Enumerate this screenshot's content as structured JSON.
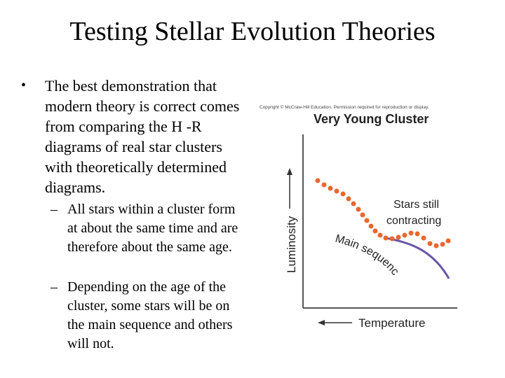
{
  "slide": {
    "title": "Testing Stellar Evolution Theories",
    "bullet": {
      "marker": "•",
      "text": "The best demonstration that modern theory is correct comes from comparing the H -R diagrams of real star clusters with theoretically determined diagrams."
    },
    "subbullets": [
      {
        "marker": "–",
        "text": "All stars within a cluster form at about the same time and are therefore about the same age."
      },
      {
        "marker": "–",
        "text": "Depending on the age of the cluster, some stars will be on the main sequence and others will not."
      }
    ]
  },
  "figure": {
    "copyright": "Copyright © McCraw-Hill Education. Permission required for reproduction or display.",
    "title": "Very Young Cluster",
    "y_axis_label": "Luminosity",
    "x_axis_label": "Temperature",
    "annotation_contracting_line1": "Stars still",
    "annotation_contracting_line2": "contracting",
    "annotation_main_sequence": "Main sequence",
    "colors": {
      "main_sequence": "#6a55a8",
      "contracting_stars": "#e8672f",
      "axis": "#555555",
      "title_text": "#222222"
    }
  }
}
